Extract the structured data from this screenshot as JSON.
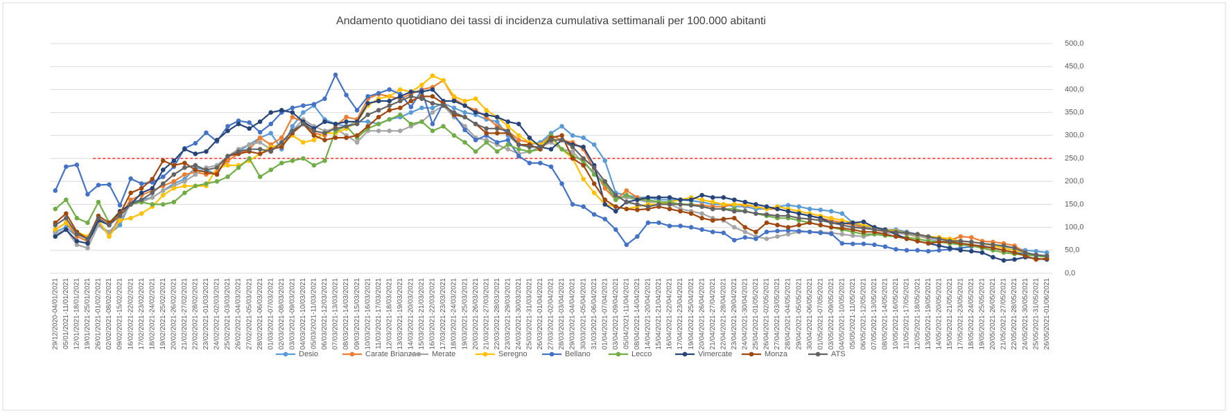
{
  "chart_data": {
    "type": "line",
    "title": "Andamento quotidiano dei tassi di incidenza cumulativa settimanali per 100.000 abitanti",
    "categories": [
      "29/12/2020-04/01/2021",
      "05/01/2021-11/01/2021",
      "12/01/2021-18/01/2021",
      "19/01/2021-25/01/2021",
      "26/01/2021-01/02/2021",
      "02/02/2021-08/02/2021",
      "09/02/2021-15/02/2021",
      "16/02/2021-22/02/2021",
      "17/02/2021-23/02/2021",
      "18/02/2021-24/02/2021",
      "19/02/2021-25/02/2021",
      "20/02/2021-26/02/2021",
      "21/02/2021-27/02/2021",
      "22/02/2021-28/02/2021",
      "23/02/2021-01/03/2021",
      "24/02/2021-02/03/2021",
      "25/02/2021-03/03/2021",
      "26/02/2021-04/03/2021",
      "27/02/2021-05/03/2021",
      "28/02/2021-06/03/2021",
      "01/03/2021-07/03/2021",
      "02/03/2021-08/03/2021",
      "03/03/2021-09/03/2021",
      "04/03/2021-10/03/2021",
      "05/03/2021-11/03/2021",
      "06/03/2021-12/03/2021",
      "07/03/2021-13/03/2021",
      "08/03/2021-14/03/2021",
      "09/03/2021-15/03/2021",
      "10/03/2021-16/03/2021",
      "11/03/2021-17/03/2021",
      "12/03/2021-18/03/2021",
      "13/03/2021-19/03/2021",
      "14/03/2021-20/03/2021",
      "15/03/2021-21/03/2021",
      "16/03/2021-22/03/2021",
      "17/03/2021-23/03/2021",
      "18/03/2021-24/03/2021",
      "19/03/2021-25/03/2021",
      "20/03/2021-26/03/2021",
      "21/03/2021-27/03/2021",
      "22/03/2021-28/03/2021",
      "23/03/2021-29/03/2021",
      "24/03/2021-30/03/2021",
      "25/03/2021-31/03/2021",
      "26/03/2021-01/04/2021",
      "27/03/2021-02/04/2021",
      "28/03/2021-03/04/2021",
      "29/03/2021-04/04/2021",
      "30/03/2021-05/04/2021",
      "31/03/2021-06/04/2021",
      "01/04/2021-07/04/2021",
      "03/04/2021-09/04/2021",
      "05/04/2021-11/04/2021",
      "08/04/2021-14/04/2021",
      "14/04/2021-20/04/2021",
      "15/04/2021-21/04/2021",
      "16/04/2021-22/04/2021",
      "17/04/2021-23/04/2021",
      "19/04/2021-25/04/2021",
      "20/04/2021-26/04/2021",
      "21/04/2021-27/04/2021",
      "22/04/2021-28/04/2021",
      "23/04/2021-29/04/2021",
      "24/04/2021-30/04/2021",
      "25/04/2021-01/05/2021",
      "26/04/2021-02/05/2021",
      "27/04/2021-03/05/2021",
      "28/04/2021-04/05/2021",
      "29/04/2021-05/05/2021",
      "30/04/2021-06/05/2021",
      "01/05/2021-07/05/2021",
      "03/05/2021-09/05/2021",
      "04/05/2021-10/05/2021",
      "05/05/2021-11/05/2021",
      "06/05/2021-12/05/2021",
      "07/05/2021-13/05/2021",
      "08/05/2021-14/05/2021",
      "10/05/2021-16/05/2021",
      "11/05/2021-17/05/2021",
      "12/05/2021-18/05/2021",
      "13/05/2021-19/05/2021",
      "14/05/2021-20/05/2021",
      "15/05/2021-21/05/2021",
      "17/05/2021-23/05/2021",
      "18/05/2021-24/05/2021",
      "19/05/2021-25/05/2021",
      "20/05/2021-26/05/2021",
      "21/05/2021-27/05/2021",
      "22/05/2021-28/05/2021",
      "24/05/2021-30/05/2021",
      "25/05/2021-31/05/2021",
      "26/05/2021-01/06/2021"
    ],
    "series": [
      {
        "name": "Desio",
        "color": "#5b9bd5",
        "values": [
          90,
          100,
          80,
          70,
          105,
          85,
          105,
          155,
          160,
          165,
          180,
          195,
          205,
          230,
          225,
          215,
          255,
          265,
          280,
          295,
          305,
          270,
          320,
          350,
          365,
          335,
          325,
          320,
          330,
          330,
          325,
          335,
          340,
          350,
          360,
          360,
          370,
          360,
          350,
          345,
          335,
          330,
          300,
          280,
          280,
          285,
          305,
          320,
          300,
          295,
          280,
          245,
          175,
          170,
          165,
          165,
          160,
          160,
          160,
          158,
          155,
          150,
          150,
          145,
          145,
          140,
          140,
          145,
          148,
          145,
          140,
          138,
          135,
          130,
          110,
          100,
          100,
          95,
          95,
          90,
          85,
          78,
          75,
          72,
          70,
          68,
          65,
          62,
          58,
          55,
          50,
          48,
          45
        ]
      },
      {
        "name": "Carate Brianza",
        "color": "#ed7d31",
        "values": [
          95,
          110,
          80,
          70,
          115,
          80,
          125,
          160,
          170,
          180,
          190,
          200,
          215,
          220,
          215,
          220,
          245,
          260,
          270,
          295,
          280,
          295,
          340,
          330,
          305,
          300,
          320,
          340,
          335,
          380,
          390,
          385,
          380,
          390,
          400,
          405,
          420,
          380,
          365,
          355,
          340,
          320,
          310,
          290,
          285,
          280,
          300,
          290,
          285,
          270,
          225,
          185,
          160,
          180,
          165,
          160,
          155,
          150,
          150,
          150,
          148,
          145,
          145,
          150,
          148,
          145,
          140,
          140,
          135,
          130,
          125,
          120,
          115,
          110,
          105,
          100,
          95,
          90,
          88,
          85,
          80,
          78,
          78,
          72,
          80,
          78,
          70,
          68,
          65,
          60,
          45,
          40,
          35
        ]
      },
      {
        "name": "Merate",
        "color": "#a5a5a5",
        "values": [
          85,
          95,
          62,
          55,
          105,
          90,
          115,
          150,
          155,
          165,
          180,
          190,
          200,
          215,
          230,
          235,
          255,
          270,
          280,
          285,
          270,
          285,
          310,
          335,
          320,
          310,
          315,
          300,
          285,
          310,
          310,
          310,
          310,
          320,
          330,
          350,
          365,
          340,
          320,
          295,
          290,
          280,
          270,
          260,
          265,
          275,
          285,
          270,
          265,
          240,
          220,
          195,
          165,
          165,
          160,
          155,
          155,
          150,
          140,
          135,
          130,
          120,
          115,
          100,
          90,
          80,
          75,
          80,
          85,
          90,
          90,
          90,
          88,
          85,
          82,
          80,
          85,
          88,
          88,
          85,
          82,
          75,
          70,
          68,
          65,
          62,
          60,
          55,
          50,
          45,
          40,
          38,
          35
        ]
      },
      {
        "name": "Seregno",
        "color": "#ffc000",
        "values": [
          95,
          110,
          90,
          80,
          115,
          80,
          115,
          120,
          130,
          145,
          170,
          185,
          190,
          190,
          190,
          230,
          235,
          235,
          245,
          260,
          275,
          280,
          300,
          285,
          290,
          305,
          305,
          315,
          330,
          365,
          380,
          385,
          400,
          395,
          410,
          430,
          420,
          385,
          375,
          380,
          355,
          340,
          320,
          300,
          285,
          280,
          295,
          270,
          250,
          205,
          175,
          150,
          145,
          140,
          145,
          150,
          150,
          155,
          160,
          165,
          160,
          155,
          150,
          150,
          150,
          145,
          140,
          145,
          140,
          135,
          130,
          125,
          120,
          115,
          110,
          105,
          100,
          95,
          92,
          88,
          85,
          80,
          78,
          75,
          70,
          68,
          65,
          60,
          55,
          50,
          45,
          40,
          35
        ]
      },
      {
        "name": "Bellano",
        "color": "#4472c4",
        "values": [
          180,
          232,
          236,
          172,
          192,
          193,
          148,
          206,
          195,
          198,
          210,
          232,
          272,
          283,
          306,
          287,
          320,
          332,
          328,
          307,
          325,
          350,
          360,
          365,
          368,
          380,
          432,
          388,
          355,
          385,
          392,
          400,
          390,
          362,
          398,
          325,
          370,
          345,
          312,
          290,
          300,
          285,
          290,
          255,
          240,
          240,
          232,
          195,
          150,
          145,
          128,
          118,
          95,
          62,
          80,
          110,
          110,
          103,
          103,
          100,
          95,
          90,
          88,
          72,
          78,
          75,
          90,
          92,
          93,
          92,
          90,
          88,
          86,
          65,
          64,
          64,
          62,
          58,
          52,
          50,
          50,
          48,
          50,
          52,
          55,
          58,
          60,
          55,
          50,
          45,
          42,
          40,
          38
        ]
      },
      {
        "name": "Lecco",
        "color": "#70ad47",
        "values": [
          140,
          160,
          120,
          110,
          155,
          110,
          135,
          150,
          155,
          150,
          150,
          155,
          175,
          190,
          195,
          200,
          210,
          230,
          250,
          210,
          225,
          240,
          245,
          250,
          235,
          245,
          310,
          320,
          295,
          315,
          325,
          335,
          345,
          325,
          330,
          310,
          320,
          300,
          285,
          265,
          285,
          265,
          280,
          270,
          265,
          270,
          300,
          270,
          255,
          245,
          215,
          195,
          160,
          170,
          160,
          160,
          155,
          155,
          150,
          150,
          145,
          140,
          140,
          140,
          135,
          130,
          125,
          120,
          120,
          115,
          110,
          105,
          100,
          95,
          90,
          85,
          85,
          82,
          80,
          78,
          75,
          70,
          68,
          65,
          62,
          60,
          55,
          50,
          45,
          42,
          40,
          38,
          35
        ]
      },
      {
        "name": "Vimercate",
        "color": "#264478",
        "values": [
          80,
          95,
          70,
          65,
          115,
          105,
          135,
          150,
          175,
          185,
          225,
          245,
          270,
          260,
          265,
          290,
          310,
          325,
          315,
          330,
          350,
          355,
          350,
          330,
          315,
          330,
          325,
          330,
          330,
          370,
          375,
          375,
          385,
          395,
          395,
          400,
          375,
          375,
          365,
          350,
          345,
          340,
          330,
          325,
          295,
          275,
          270,
          290,
          280,
          275,
          235,
          150,
          135,
          155,
          160,
          165,
          165,
          165,
          160,
          160,
          170,
          165,
          165,
          160,
          155,
          150,
          145,
          140,
          135,
          130,
          125,
          120,
          110,
          108,
          110,
          112,
          100,
          95,
          85,
          75,
          70,
          65,
          60,
          55,
          50,
          48,
          45,
          35,
          28,
          30,
          35,
          32,
          30
        ]
      },
      {
        "name": "Monza",
        "color": "#9e480e",
        "values": [
          110,
          130,
          90,
          75,
          125,
          110,
          130,
          175,
          185,
          205,
          245,
          235,
          240,
          225,
          220,
          215,
          255,
          260,
          265,
          260,
          270,
          275,
          305,
          325,
          300,
          290,
          295,
          295,
          300,
          320,
          340,
          355,
          360,
          375,
          385,
          385,
          370,
          345,
          340,
          325,
          305,
          305,
          305,
          280,
          280,
          270,
          295,
          300,
          250,
          235,
          195,
          160,
          145,
          140,
          138,
          140,
          145,
          140,
          135,
          130,
          120,
          115,
          118,
          120,
          100,
          90,
          110,
          105,
          100,
          105,
          110,
          105,
          100,
          98,
          95,
          90,
          90,
          85,
          80,
          75,
          70,
          65,
          68,
          68,
          65,
          62,
          58,
          55,
          50,
          45,
          38,
          30,
          32
        ]
      },
      {
        "name": "ATS",
        "color": "#636363",
        "values": [
          105,
          120,
          85,
          75,
          120,
          105,
          125,
          150,
          160,
          175,
          195,
          215,
          230,
          235,
          225,
          230,
          255,
          265,
          270,
          270,
          265,
          285,
          310,
          325,
          310,
          305,
          315,
          320,
          325,
          345,
          355,
          365,
          375,
          385,
          380,
          370,
          365,
          350,
          340,
          325,
          315,
          315,
          310,
          280,
          275,
          275,
          290,
          290,
          275,
          250,
          230,
          200,
          170,
          155,
          150,
          145,
          150,
          150,
          150,
          148,
          145,
          140,
          140,
          135,
          135,
          130,
          128,
          125,
          125,
          120,
          118,
          115,
          110,
          105,
          100,
          98,
          95,
          92,
          90,
          88,
          85,
          80,
          75,
          70,
          70,
          68,
          65,
          62,
          60,
          55,
          45,
          40,
          38
        ]
      }
    ],
    "reference_line": {
      "value": 250,
      "color": "#ff0000"
    },
    "ylim": [
      0,
      500
    ],
    "yticks": [
      {
        "value": 0,
        "label": "0,0"
      },
      {
        "value": 50,
        "label": "50,0"
      },
      {
        "value": 100,
        "label": "100,0"
      },
      {
        "value": 150,
        "label": "150,0"
      },
      {
        "value": 200,
        "label": "200,0"
      },
      {
        "value": 250,
        "label": "250,0"
      },
      {
        "value": 300,
        "label": "300,0"
      },
      {
        "value": 350,
        "label": "350,0"
      },
      {
        "value": 400,
        "label": "400,0"
      },
      {
        "value": 450,
        "label": "450,0"
      },
      {
        "value": 500,
        "label": "500,0"
      }
    ],
    "grid": true,
    "legend": "bottom"
  }
}
